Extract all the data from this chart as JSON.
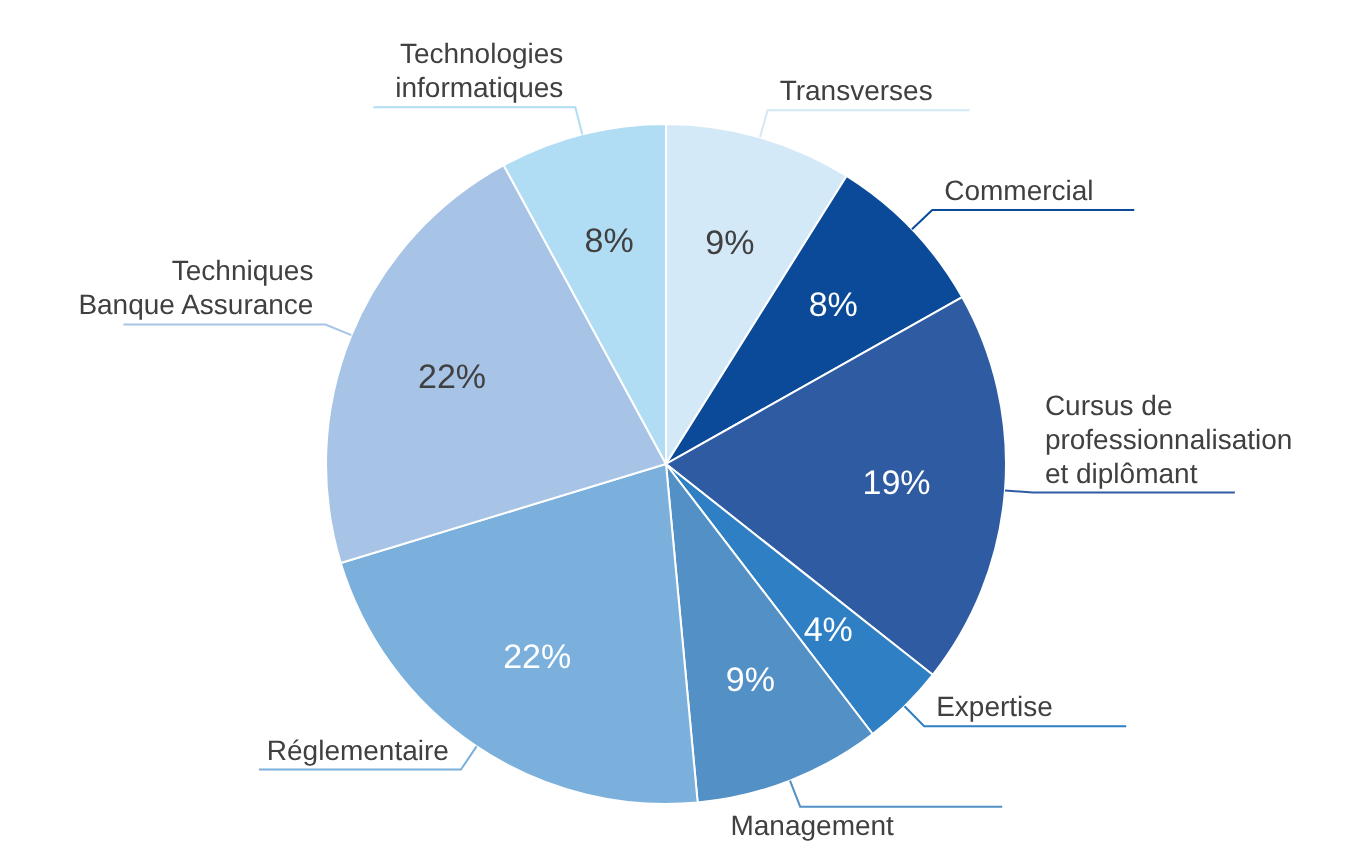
{
  "chart_data": {
    "type": "pie",
    "categories": [
      "Transverses",
      "Commercial",
      "Cursus de professionnalisation et diplômant",
      "Expertise",
      "Management",
      "Réglementaire",
      "Techniques Banque Assurance",
      "Technologies informatiques"
    ],
    "values": [
      9,
      8,
      19,
      4,
      9,
      22,
      22,
      8
    ],
    "value_labels": [
      "9%",
      "8%",
      "19%",
      "4%",
      "9%",
      "22%",
      "22%",
      "8%"
    ],
    "colors": [
      "#d4e9f7",
      "#0b4a99",
      "#2f5ba3",
      "#2e7fc3",
      "#5290c6",
      "#7bb0dc",
      "#a7c4e7",
      "#b1ddf4"
    ]
  }
}
